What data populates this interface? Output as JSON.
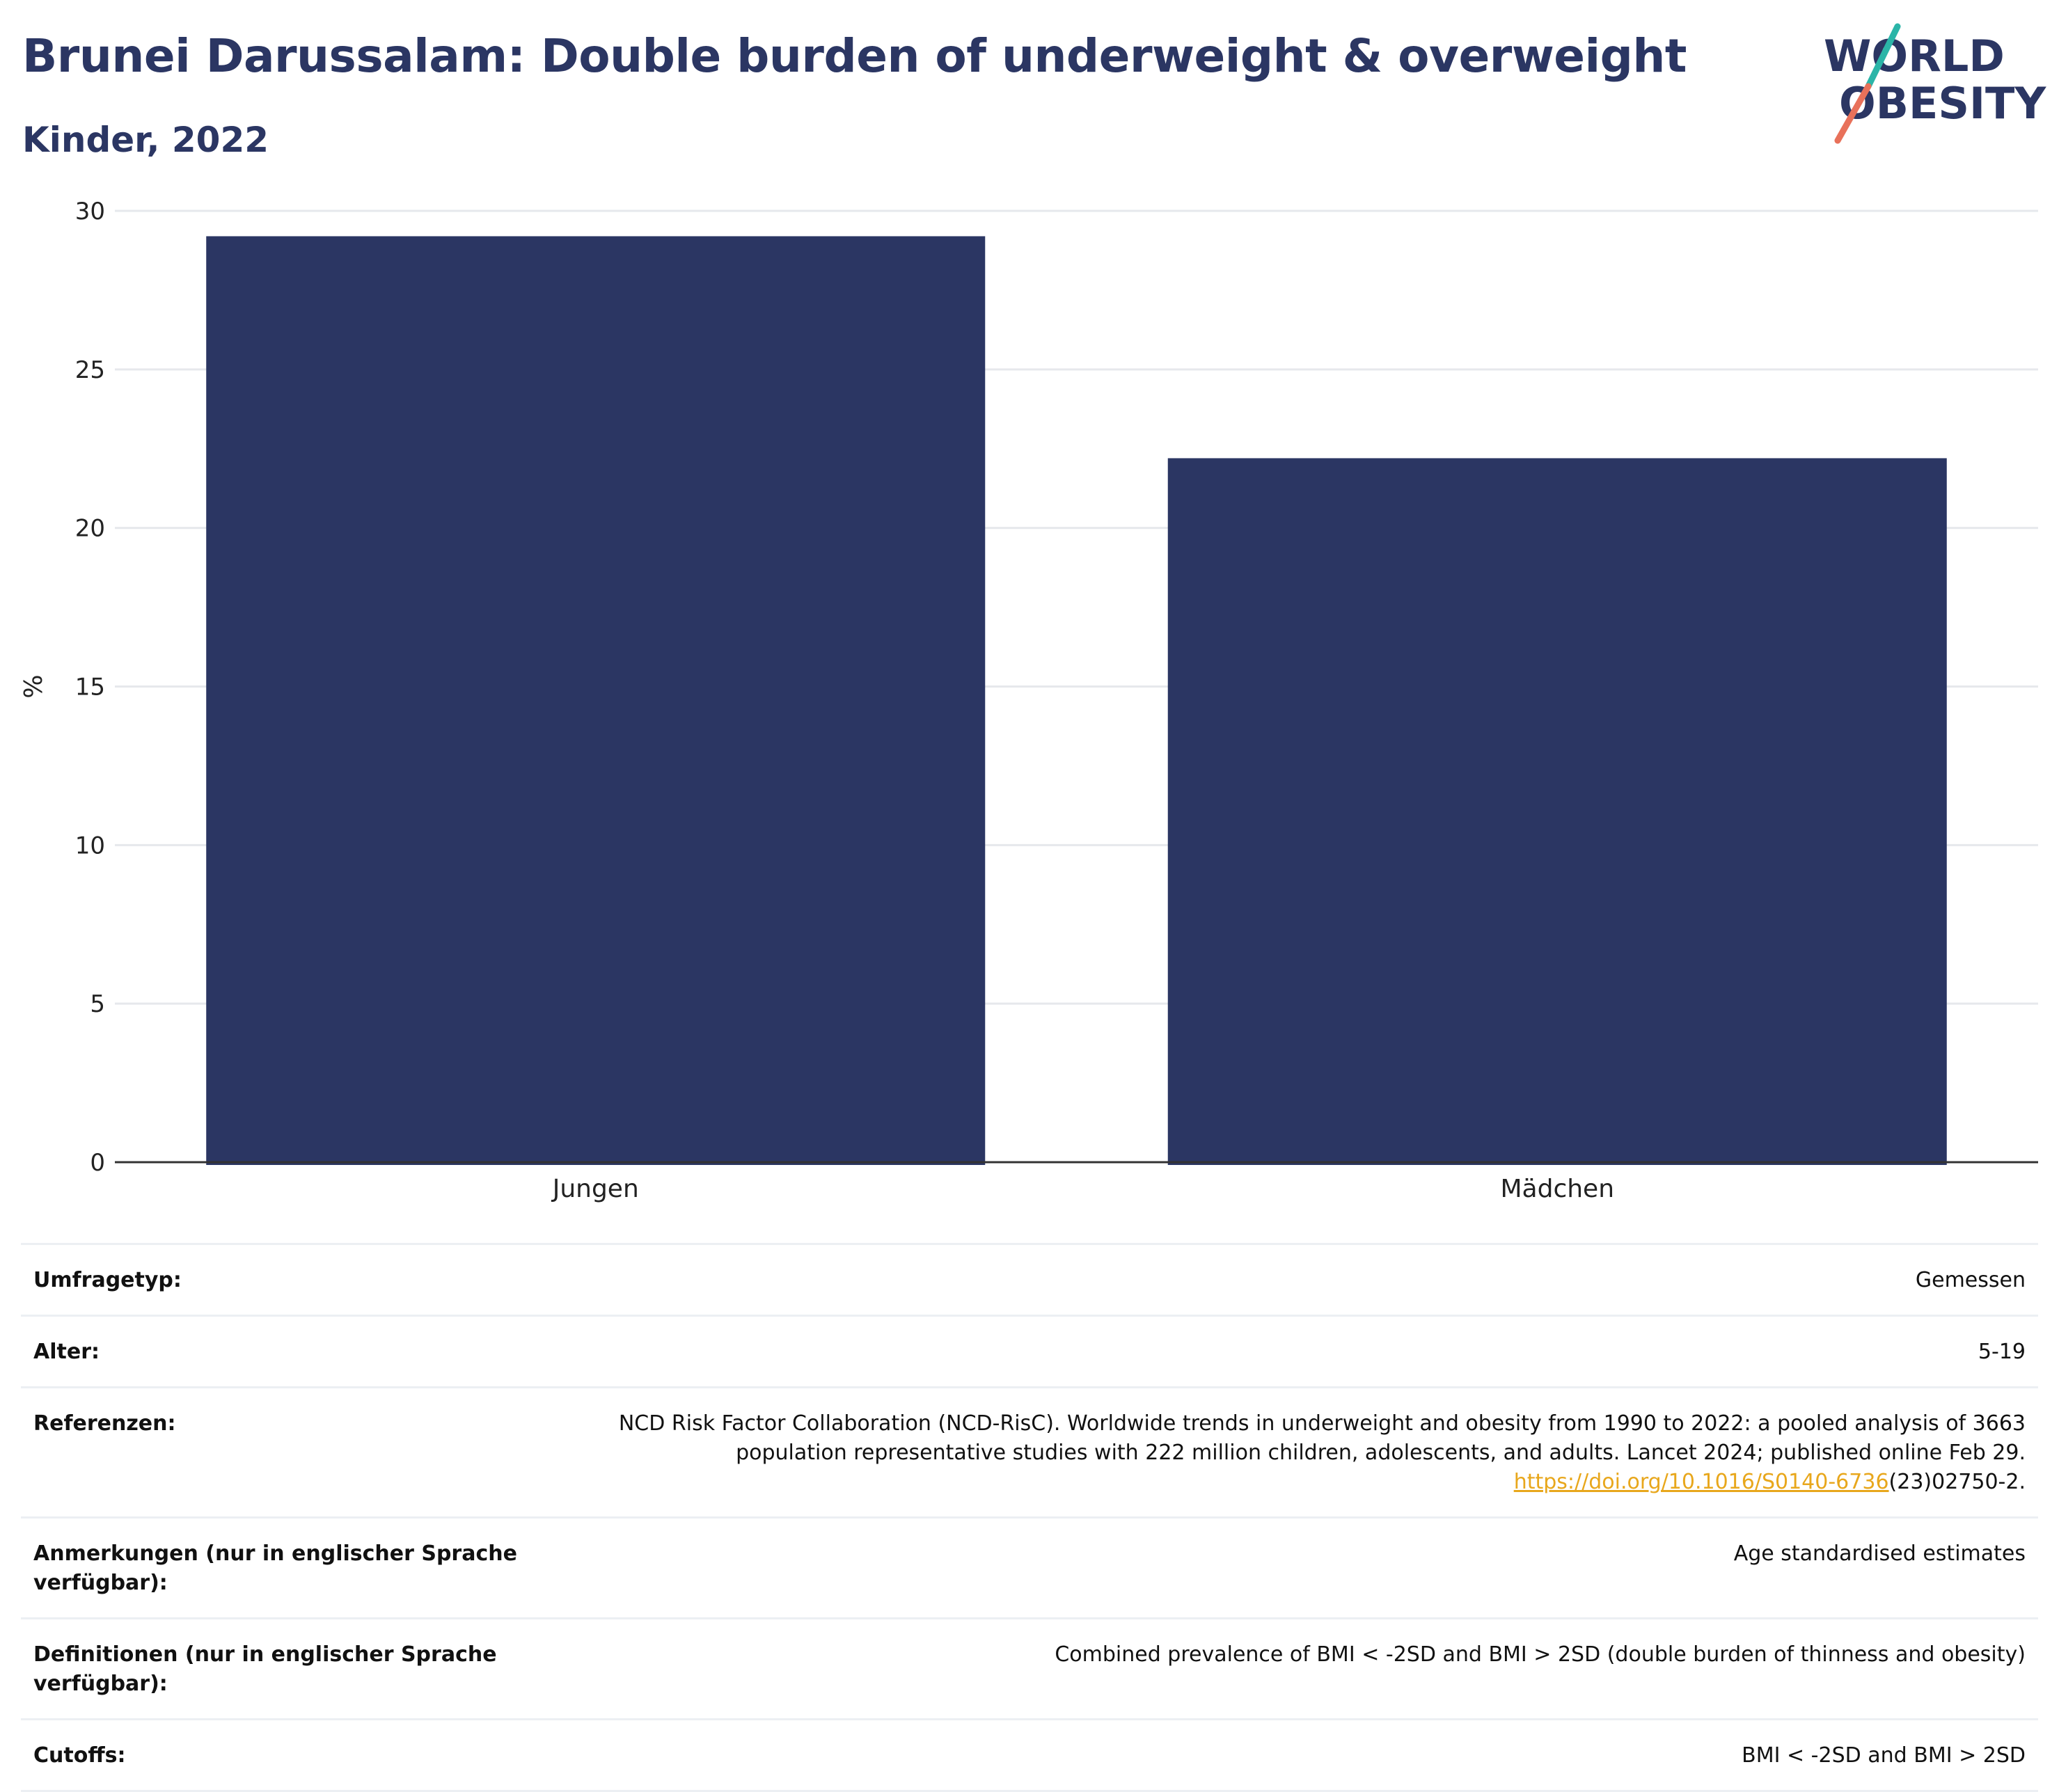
{
  "header": {
    "title": "Brunei Darussalam: Double burden of underweight & overweight",
    "subtitle": "Kinder, 2022"
  },
  "logo": {
    "text_line1": "WORLD",
    "text_line2": "OBESITY",
    "colors": {
      "text": "#2b3663",
      "slash_top": "#2bb5a8",
      "slash_bottom": "#e8715a"
    }
  },
  "chart_data": {
    "type": "bar",
    "categories": [
      "Jungen",
      "Mädchen"
    ],
    "values": [
      29.2,
      22.2
    ],
    "ylabel": "%",
    "xlabel": "",
    "ylim": [
      0,
      30
    ],
    "yticks": [
      0,
      5,
      10,
      15,
      20,
      25,
      30
    ],
    "grid": true,
    "legend": "none",
    "bar_color": "#2b3663"
  },
  "info_table": {
    "rows": [
      {
        "label": "Umfragetyp:",
        "value": "Gemessen"
      },
      {
        "label": "Alter:",
        "value": "5-19"
      },
      {
        "label": "Referenzen:",
        "value": "NCD Risk Factor Collaboration (NCD-RisC). Worldwide trends in underweight and obesity from 1990 to 2022: a pooled analysis of 3663 population representative studies with 222 million children, adolescents, and adults. Lancet 2024; published online Feb 29.",
        "link_text": "https://doi.org/10.1016/S0140-6736",
        "link_suffix": "(23)02750-2."
      },
      {
        "label": "Anmerkungen (nur in englischer Sprache verfügbar):",
        "value": "Age standardised estimates"
      },
      {
        "label": "Definitionen (nur in englischer Sprache verfügbar):",
        "value": "Combined prevalence of BMI < -2SD and BMI > 2SD (double burden of thinness and obesity)"
      },
      {
        "label": "Cutoffs:",
        "value": "BMI < -2SD and BMI > 2SD"
      }
    ]
  }
}
